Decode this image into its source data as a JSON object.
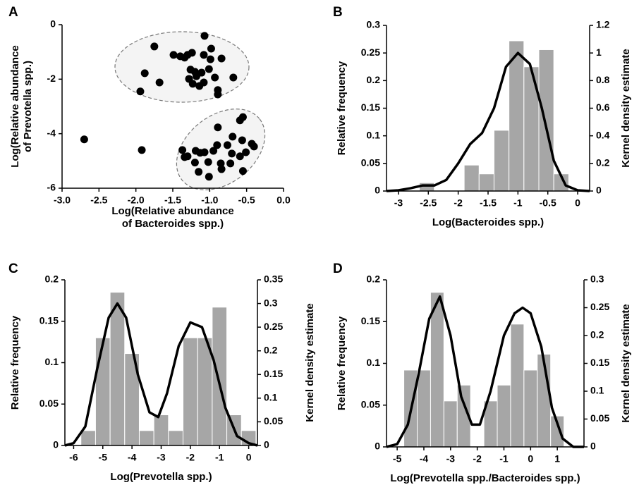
{
  "chart_data": [
    {
      "type": "scatter",
      "panel_label": "A",
      "x_label": [
        "Log(Relative abundance",
        "of Bacteroides spp.)"
      ],
      "y_label": [
        "Log(Relative abundance",
        "of Prevotella spp.)"
      ],
      "color": "#000000",
      "x": [
        -1.07,
        -1.75,
        -0.98,
        -1.49,
        -1.4,
        -1.3,
        -1.24,
        -1.34,
        -1.08,
        -0.84,
        -0.99,
        -1.88,
        -0.68,
        -1.68,
        -1.94,
        -1.26,
        -1.2,
        -1.11,
        -1.01,
        -1.28,
        -1.18,
        -1.08,
        -1.14,
        -1.23,
        -0.89,
        -0.89,
        -0.93,
        -2.7,
        -1.92,
        -0.55,
        -0.59,
        -0.89,
        -1.37,
        -0.69,
        -0.56,
        -0.43,
        -0.4,
        -0.76,
        -0.9,
        -1.13,
        -1.19,
        -1.07,
        -1.34,
        -0.95,
        -0.7,
        -0.51,
        -0.59,
        -1.2,
        -1.02,
        -0.85,
        -0.72,
        -0.84,
        -0.55,
        -1.01,
        -1.15,
        -1.3
      ],
      "y": [
        -0.41,
        -0.8,
        -0.88,
        -1.11,
        -1.16,
        -1.11,
        -1.03,
        -1.21,
        -1.11,
        -1.24,
        -1.27,
        -1.78,
        -1.94,
        -2.12,
        -2.45,
        -1.65,
        -1.73,
        -1.76,
        -1.63,
        -1.99,
        -1.89,
        -2.12,
        -2.25,
        -2.17,
        -2.4,
        -2.56,
        -1.94,
        -4.21,
        -4.6,
        -3.39,
        -3.51,
        -3.77,
        -4.6,
        -4.11,
        -4.24,
        -4.37,
        -4.47,
        -4.42,
        -4.42,
        -4.7,
        -4.63,
        -4.68,
        -4.86,
        -4.63,
        -4.73,
        -4.68,
        -4.83,
        -5.06,
        -5.04,
        -5.09,
        -5.09,
        -5.3,
        -5.37,
        -5.58,
        -5.4,
        -4.83
      ],
      "xlim": [
        -3,
        0
      ],
      "ylim": [
        -6,
        0
      ],
      "xticks": [
        {
          "value": -3,
          "label": "-3.0"
        },
        -2.5,
        {
          "value": -2,
          "label": "-2.0"
        },
        -1.5,
        {
          "value": -1,
          "label": "-1.0"
        },
        -0.5,
        {
          "value": 0,
          "label": "0.0"
        }
      ],
      "yticks": [
        0,
        -2,
        -4,
        -6
      ]
    },
    {
      "type": "histogram",
      "panel_label": "B",
      "x_label": "Log(Bacteroides spp.)",
      "y_label": "Relative frequency",
      "y2_label": "Kernel density estimate",
      "color": "#a6a6a6",
      "bins": [
        -2.65,
        -2.4,
        -2.15,
        -1.9,
        -1.65,
        -1.4,
        -1.15,
        -0.9,
        -0.65,
        -0.4,
        -0.15
      ],
      "values": [
        0.015,
        0,
        0,
        0.047,
        0.031,
        0.11,
        0.272,
        0.225,
        0.256,
        0.031
      ],
      "kde": {
        "axis": "y2",
        "color": "#000000",
        "x": [
          -3.2,
          -3,
          -2.8,
          -2.6,
          -2.4,
          -2.2,
          -2,
          -1.8,
          -1.6,
          -1.4,
          -1.2,
          -1,
          -0.8,
          -0.6,
          -0.4,
          -0.2,
          0,
          0.2
        ],
        "values": [
          0,
          0.005,
          0.02,
          0.04,
          0.04,
          0.08,
          0.2,
          0.34,
          0.42,
          0.6,
          0.9,
          1.0,
          0.92,
          0.6,
          0.22,
          0.04,
          0.005,
          0
        ]
      },
      "xlim": [
        -3.2,
        0.2
      ],
      "ylim": [
        0,
        0.3
      ],
      "y2lim": [
        0,
        1.2
      ],
      "xticks": [
        -3,
        -2.5,
        -2,
        -1.5,
        -1,
        -0.5,
        0
      ],
      "yticks": [
        0,
        0.05,
        0.1,
        0.15,
        0.2,
        0.25,
        0.3
      ],
      "y2ticks": [
        0,
        0.2,
        0.4,
        0.6,
        0.8,
        1,
        1.2
      ]
    },
    {
      "type": "histogram",
      "panel_label": "C",
      "x_label": "Log(Prevotella spp.)",
      "y_label": "Relative frequency",
      "y2_label": "Kernel density estimate",
      "color": "#a6a6a6",
      "bins": [
        -5.75,
        -5.25,
        -4.75,
        -4.25,
        -3.75,
        -3.25,
        -2.75,
        -2.25,
        -1.75,
        -1.25,
        -0.75,
        -0.25,
        0.25
      ],
      "values": [
        0.018,
        0.13,
        0.185,
        0.111,
        0.018,
        0.037,
        0.018,
        0.13,
        0.13,
        0.167,
        0.037,
        0.018
      ],
      "kde": {
        "axis": "y2",
        "color": "#000000",
        "x": [
          -6.3,
          -6,
          -5.6,
          -5.2,
          -4.8,
          -4.5,
          -4.2,
          -3.8,
          -3.4,
          -3.1,
          -2.8,
          -2.4,
          -2,
          -1.6,
          -1.2,
          -0.8,
          -0.4,
          0,
          0.3
        ],
        "values": [
          0,
          0.005,
          0.04,
          0.16,
          0.27,
          0.3,
          0.27,
          0.15,
          0.07,
          0.06,
          0.11,
          0.21,
          0.26,
          0.25,
          0.18,
          0.08,
          0.02,
          0.005,
          0
        ]
      },
      "xlim": [
        -6.3,
        0.3
      ],
      "ylim": [
        0,
        0.2
      ],
      "y2lim": [
        0,
        0.35
      ],
      "xticks": [
        -6,
        -5,
        -4,
        -3,
        -2,
        -1,
        0
      ],
      "yticks": [
        0,
        0.05,
        0.1,
        0.15,
        0.2
      ],
      "y2ticks": [
        0,
        0.05,
        0.1,
        0.15,
        0.2,
        0.25,
        0.3,
        0.35
      ]
    },
    {
      "type": "histogram",
      "panel_label": "D",
      "x_label": "Log(Prevotella spp./Bacteroides spp.)",
      "y_label": "Relative frequency",
      "y2_label": "Kernel density estimate",
      "color": "#a6a6a6",
      "bins": [
        -4.75,
        -4.25,
        -3.75,
        -3.25,
        -2.75,
        -2.25,
        -1.75,
        -1.25,
        -0.75,
        -0.25,
        0.25,
        0.75,
        1.25
      ],
      "values": [
        0.092,
        0.092,
        0.185,
        0.055,
        0.074,
        0,
        0.055,
        0.074,
        0.147,
        0.092,
        0.111,
        0.037
      ],
      "kde": {
        "axis": "y2",
        "color": "#000000",
        "x": [
          -5.4,
          -5,
          -4.6,
          -4.2,
          -3.8,
          -3.4,
          -3,
          -2.6,
          -2.2,
          -1.9,
          -1.5,
          -1,
          -0.6,
          -0.3,
          0,
          0.4,
          0.8,
          1.2,
          1.6,
          2
        ],
        "values": [
          0,
          0.005,
          0.04,
          0.13,
          0.23,
          0.27,
          0.2,
          0.09,
          0.04,
          0.04,
          0.1,
          0.2,
          0.24,
          0.25,
          0.24,
          0.18,
          0.07,
          0.015,
          0,
          0
        ]
      },
      "xlim": [
        -5.4,
        2
      ],
      "ylim": [
        0,
        0.2
      ],
      "y2lim": [
        0,
        0.3
      ],
      "xticks": [
        -5,
        -4,
        -3,
        -2,
        -1,
        0,
        1
      ],
      "yticks": [
        0,
        0.05,
        0.1,
        0.15,
        0.2
      ],
      "y2ticks": [
        0,
        0.05,
        0.1,
        0.15,
        0.2,
        0.25,
        0.3
      ]
    }
  ]
}
